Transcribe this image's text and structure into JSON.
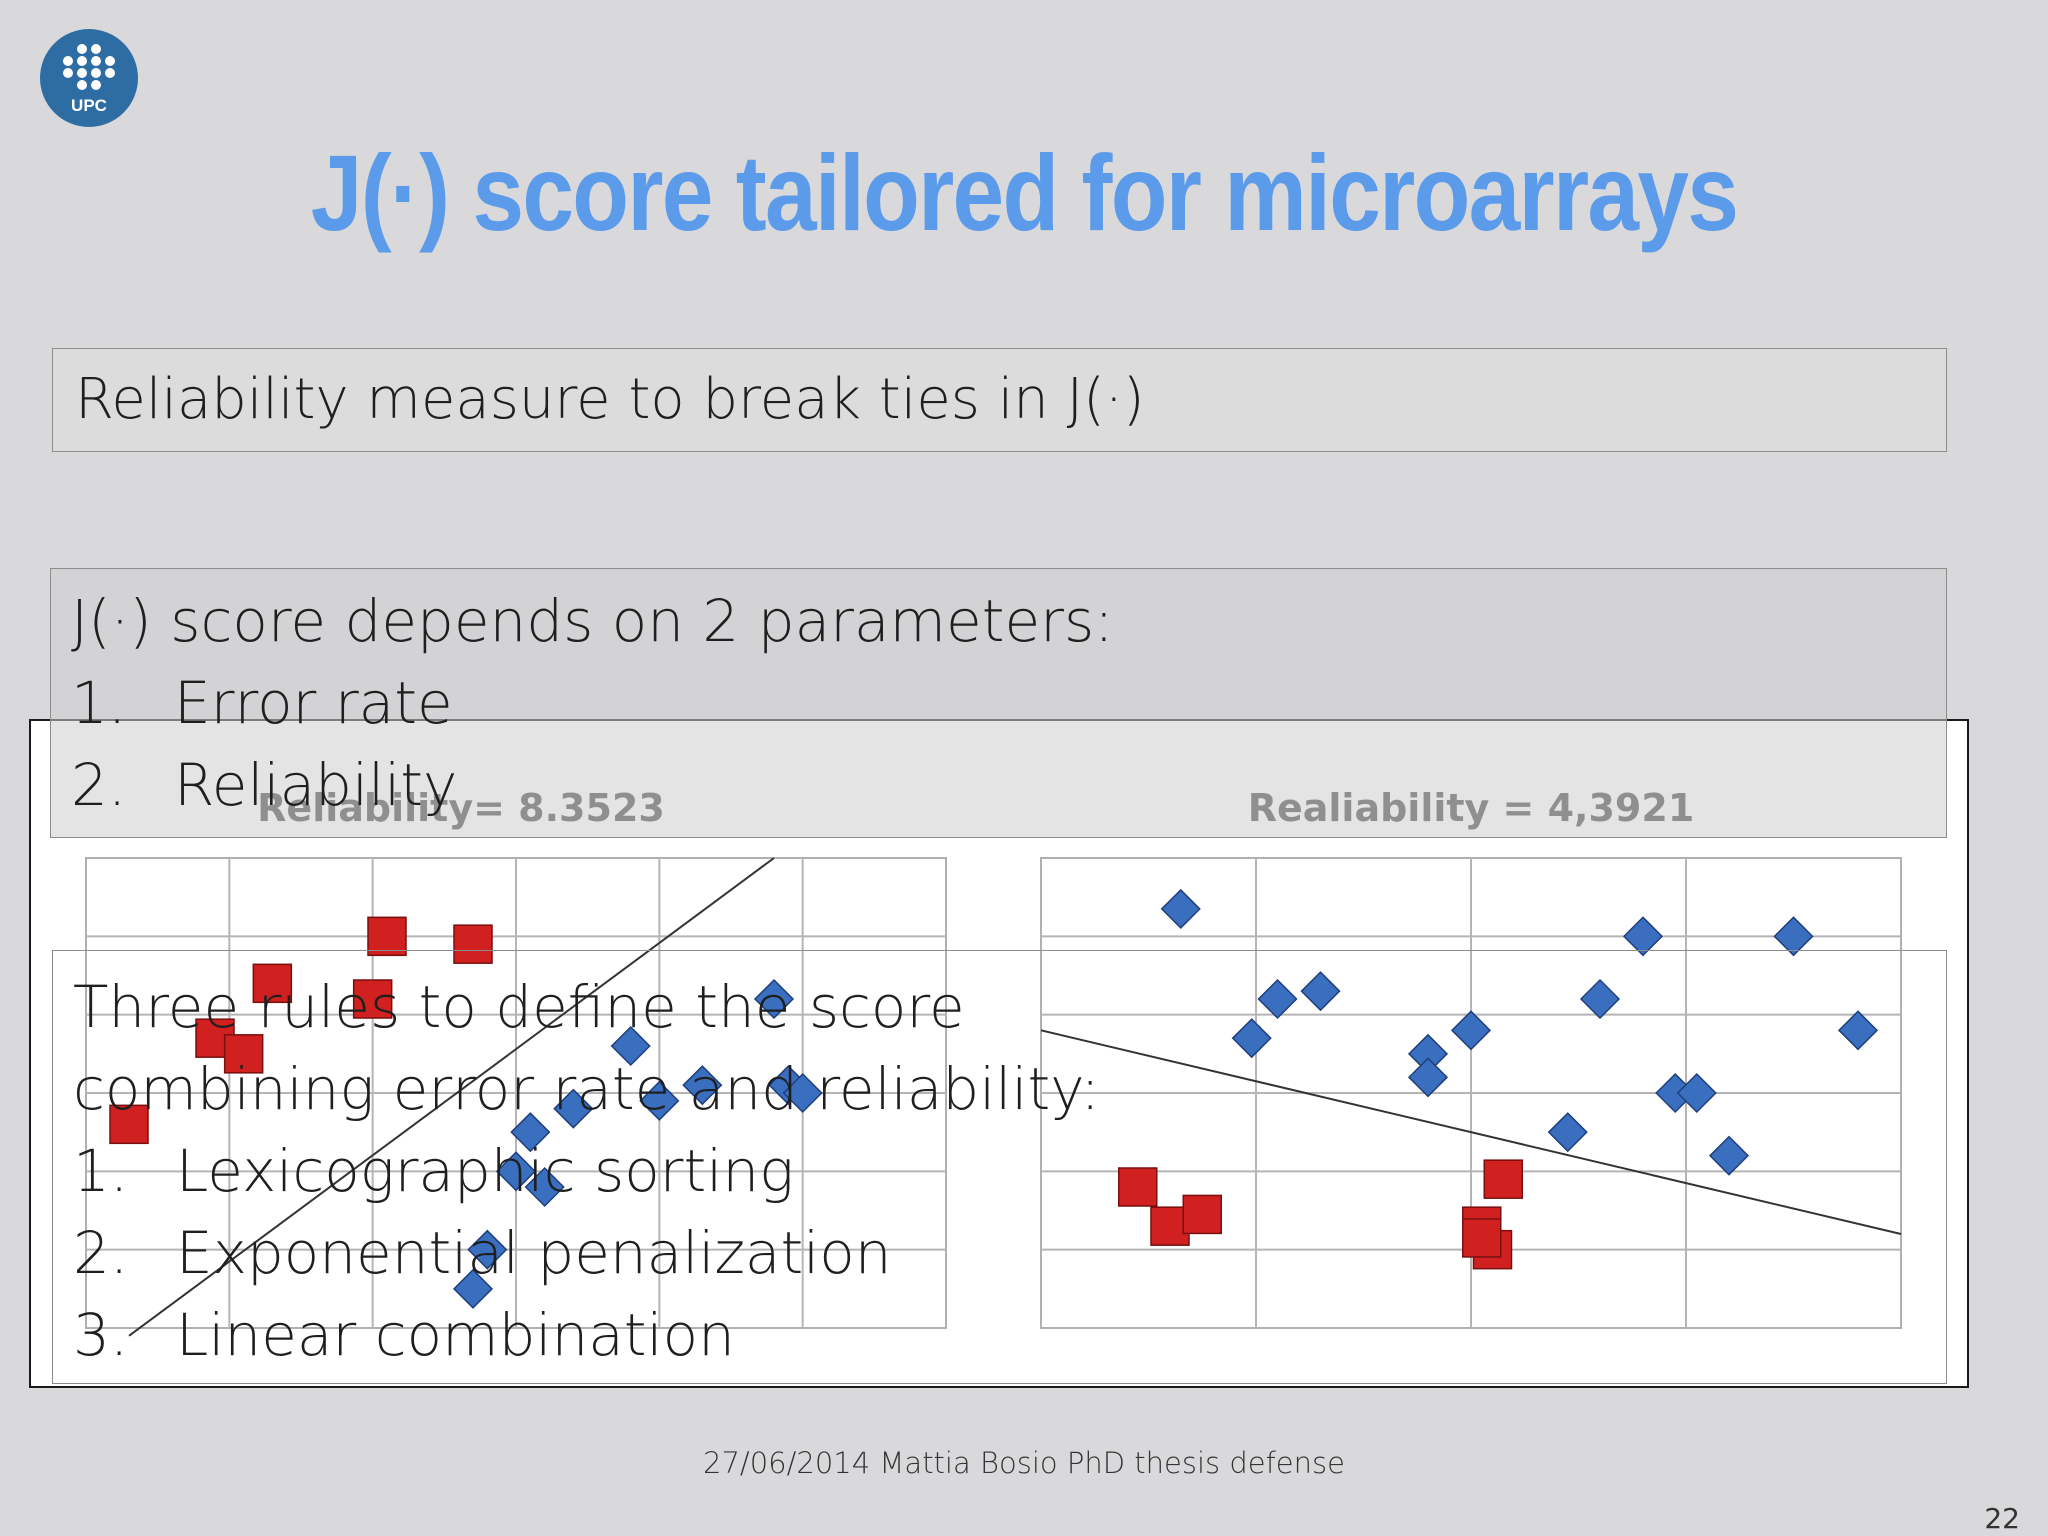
{
  "logo": {
    "text": "UPC",
    "icon": "upc-logo-icon",
    "color": "#2e6da4"
  },
  "title": "J(·) score tailored for microarrays",
  "box1": {
    "text": "Reliability measure to break ties in J(·)"
  },
  "box2": {
    "heading": "J(·) score depends on 2 parameters:",
    "items": [
      {
        "num": "1.",
        "text": "Error rate"
      },
      {
        "num": "2.",
        "text": "Reliability"
      }
    ]
  },
  "box3": {
    "heading_line1": "Three rules to define the score",
    "heading_line2": "combining error rate and reliability:",
    "items": [
      {
        "num": "1.",
        "text": "Lexicographic sorting"
      },
      {
        "num": "2.",
        "text": "Exponential penalization"
      },
      {
        "num": "3.",
        "text": "Linear combination"
      }
    ]
  },
  "chart_data": [
    {
      "type": "scatter",
      "title": "Reliability= 8.3523",
      "xlim": [
        0,
        6
      ],
      "ylim": [
        0,
        6
      ],
      "grid": true,
      "series": [
        {
          "marker": "square",
          "color": "#d02020",
          "points": [
            [
              2.1,
              5.0
            ],
            [
              2.7,
              4.9
            ],
            [
              1.3,
              4.4
            ],
            [
              2.0,
              4.2
            ],
            [
              0.9,
              3.7
            ],
            [
              1.1,
              3.5
            ],
            [
              0.3,
              2.6
            ]
          ]
        },
        {
          "marker": "diamond",
          "color": "#3a6fc0",
          "points": [
            [
              4.8,
              4.2
            ],
            [
              3.8,
              3.6
            ],
            [
              3.1,
              2.5
            ],
            [
              3.4,
              2.8
            ],
            [
              4.0,
              2.9
            ],
            [
              4.3,
              3.1
            ],
            [
              4.9,
              3.1
            ],
            [
              5.0,
              3.0
            ],
            [
              3.2,
              1.8
            ],
            [
              3.0,
              2.0
            ],
            [
              2.8,
              1.0
            ],
            [
              2.7,
              0.5
            ]
          ]
        }
      ],
      "line": [
        [
          0.3,
          -0.1
        ],
        [
          4.8,
          6.0
        ]
      ]
    },
    {
      "type": "scatter",
      "title": "Realiability = 4,3921",
      "xlim": [
        0,
        4
      ],
      "ylim": [
        0,
        6
      ],
      "grid": true,
      "series": [
        {
          "marker": "square",
          "color": "#d02020",
          "points": [
            [
              0.45,
              1.8
            ],
            [
              0.6,
              1.3
            ],
            [
              0.75,
              1.45
            ],
            [
              2.05,
              1.3
            ],
            [
              2.1,
              1.0
            ],
            [
              2.05,
              1.15
            ],
            [
              2.15,
              1.9
            ]
          ]
        },
        {
          "marker": "diamond",
          "color": "#3a6fc0",
          "points": [
            [
              0.65,
              5.35
            ],
            [
              1.1,
              4.2
            ],
            [
              1.3,
              4.3
            ],
            [
              0.98,
              3.7
            ],
            [
              1.8,
              3.5
            ],
            [
              1.8,
              3.2
            ],
            [
              2.0,
              3.8
            ],
            [
              2.6,
              4.2
            ],
            [
              2.8,
              5.0
            ],
            [
              3.5,
              5.0
            ],
            [
              3.8,
              3.8
            ],
            [
              2.95,
              3.0
            ],
            [
              3.05,
              3.0
            ],
            [
              2.45,
              2.5
            ],
            [
              3.2,
              2.2
            ]
          ]
        }
      ],
      "line": [
        [
          0,
          3.8
        ],
        [
          4,
          1.2
        ]
      ]
    }
  ],
  "footer": "27/06/2014 Mattia Bosio PhD thesis defense",
  "page_number": "22"
}
